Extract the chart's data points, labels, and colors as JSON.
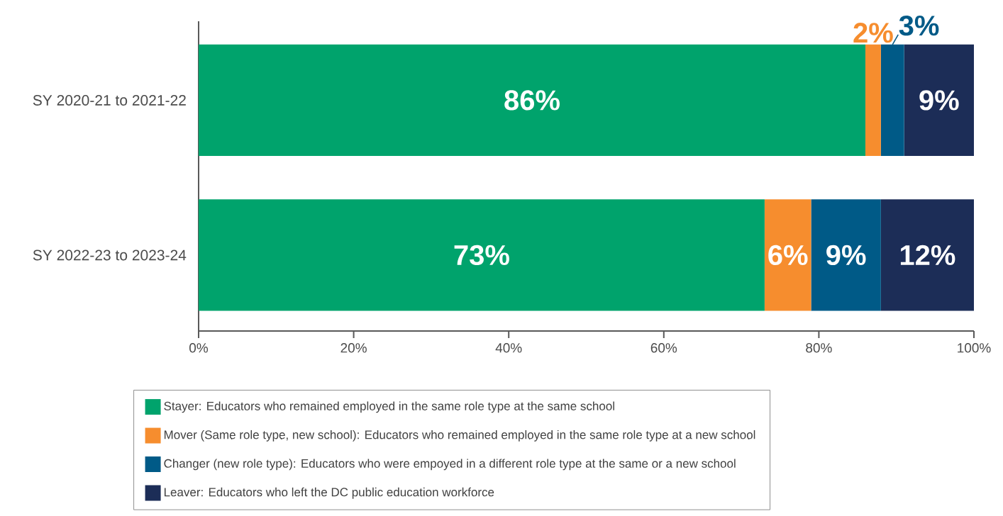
{
  "chart_data": {
    "type": "bar",
    "orientation": "horizontal",
    "stacked": true,
    "categories": [
      "SY 2020-21 to 2021-22",
      "SY 2022-23 to 2023-24"
    ],
    "series": [
      {
        "name": "Stayer: Educators who remained employed in the same role type at the same school",
        "color": "#00a36c",
        "values": [
          86,
          73
        ],
        "value_labels": [
          "86%",
          "73%"
        ]
      },
      {
        "name": "Mover (Same role type, new school): Educators who remained employed in the same role type at a new school",
        "color": "#f68d2e",
        "values": [
          2,
          6
        ],
        "value_labels": [
          "2%",
          "6%"
        ]
      },
      {
        "name": "Changer (new role type): Educators who were empoyed in a different role type at the same or a new school",
        "color": "#005a87",
        "values": [
          3,
          9
        ],
        "value_labels": [
          "3%",
          "9%"
        ]
      },
      {
        "name": "Leaver: Educators who left the DC public education workforce",
        "color": "#1c2d57",
        "values": [
          9,
          12
        ],
        "value_labels": [
          "9%",
          "12%"
        ]
      }
    ],
    "xlim": [
      0,
      100
    ],
    "xticks": [
      {
        "value": 0,
        "label": "0%"
      },
      {
        "value": 20,
        "label": "20%"
      },
      {
        "value": 40,
        "label": "40%"
      },
      {
        "value": 60,
        "label": "60%"
      },
      {
        "value": 80,
        "label": "80%"
      },
      {
        "value": 100,
        "label": "100%"
      }
    ],
    "grid": false,
    "legend": "bottom"
  }
}
